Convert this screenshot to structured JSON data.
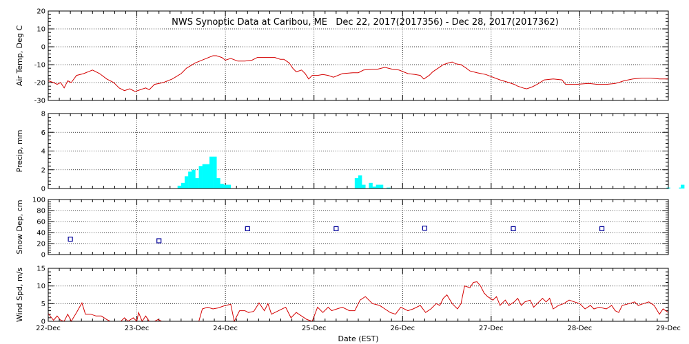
{
  "title": "NWS Synoptic Data at Caribou, ME   Dec 22, 2017(2017356) - Dec 28, 2017(2017362)",
  "xlabel": "Date (EST)",
  "x_ticks": [
    "22-Dec",
    "23-Dec",
    "24-Dec",
    "25-Dec",
    "26-Dec",
    "27-Dec",
    "28-Dec",
    "29-Dec"
  ],
  "colors": {
    "line": "#d40000",
    "precip": "#00ffff",
    "snow": "#000099",
    "grid": "#000000"
  },
  "chart_data": [
    {
      "type": "line",
      "ylabel": "Air Temp, Deg C",
      "ylim": [
        -30,
        20
      ],
      "y_ticks": [
        -30,
        -20,
        -10,
        0,
        10,
        20
      ],
      "x_unit": "days since 22-Dec 00:00 EST",
      "points": [
        [
          0.0,
          -19
        ],
        [
          0.06,
          -20
        ],
        [
          0.1,
          -21
        ],
        [
          0.14,
          -20
        ],
        [
          0.18,
          -23
        ],
        [
          0.22,
          -19
        ],
        [
          0.26,
          -20
        ],
        [
          0.32,
          -16
        ],
        [
          0.4,
          -15
        ],
        [
          0.5,
          -13
        ],
        [
          0.58,
          -15
        ],
        [
          0.66,
          -18
        ],
        [
          0.74,
          -20
        ],
        [
          0.8,
          -23
        ],
        [
          0.86,
          -24.5
        ],
        [
          0.92,
          -23.5
        ],
        [
          0.98,
          -25
        ],
        [
          1.04,
          -24
        ],
        [
          1.1,
          -23
        ],
        [
          1.14,
          -24
        ],
        [
          1.2,
          -21
        ],
        [
          1.3,
          -20
        ],
        [
          1.4,
          -18
        ],
        [
          1.5,
          -15
        ],
        [
          1.56,
          -12
        ],
        [
          1.66,
          -9
        ],
        [
          1.76,
          -7
        ],
        [
          1.86,
          -5
        ],
        [
          1.9,
          -5
        ],
        [
          1.96,
          -6
        ],
        [
          2.0,
          -7.5
        ],
        [
          2.06,
          -6.5
        ],
        [
          2.14,
          -8
        ],
        [
          2.22,
          -8
        ],
        [
          2.3,
          -7.5
        ],
        [
          2.36,
          -6
        ],
        [
          2.46,
          -6
        ],
        [
          2.56,
          -6
        ],
        [
          2.62,
          -7
        ],
        [
          2.66,
          -7
        ],
        [
          2.72,
          -9
        ],
        [
          2.76,
          -12
        ],
        [
          2.8,
          -14
        ],
        [
          2.86,
          -13
        ],
        [
          2.9,
          -15
        ],
        [
          2.94,
          -18
        ],
        [
          2.98,
          -16
        ],
        [
          3.04,
          -16
        ],
        [
          3.1,
          -15.5
        ],
        [
          3.16,
          -16
        ],
        [
          3.22,
          -17
        ],
        [
          3.32,
          -15
        ],
        [
          3.44,
          -14.5
        ],
        [
          3.5,
          -14.5
        ],
        [
          3.56,
          -13
        ],
        [
          3.66,
          -12.5
        ],
        [
          3.72,
          -12.5
        ],
        [
          3.8,
          -11.5
        ],
        [
          3.88,
          -12.5
        ],
        [
          3.96,
          -13
        ],
        [
          4.06,
          -15
        ],
        [
          4.14,
          -15.5
        ],
        [
          4.2,
          -16
        ],
        [
          4.24,
          -18
        ],
        [
          4.3,
          -16
        ],
        [
          4.34,
          -14
        ],
        [
          4.4,
          -12
        ],
        [
          4.46,
          -10
        ],
        [
          4.52,
          -9
        ],
        [
          4.56,
          -8.5
        ],
        [
          4.6,
          -9.5
        ],
        [
          4.66,
          -10
        ],
        [
          4.72,
          -12
        ],
        [
          4.76,
          -13.5
        ],
        [
          4.84,
          -14.5
        ],
        [
          4.94,
          -15.5
        ],
        [
          5.1,
          -18.5
        ],
        [
          5.2,
          -20
        ],
        [
          5.26,
          -21
        ],
        [
          5.3,
          -22
        ],
        [
          5.36,
          -23
        ],
        [
          5.4,
          -23.5
        ],
        [
          5.46,
          -22.5
        ],
        [
          5.52,
          -21
        ],
        [
          5.6,
          -18.5
        ],
        [
          5.7,
          -18
        ],
        [
          5.8,
          -18.5
        ],
        [
          5.84,
          -21
        ],
        [
          5.96,
          -21
        ],
        [
          6.1,
          -20.5
        ],
        [
          6.2,
          -21
        ],
        [
          6.3,
          -21
        ],
        [
          6.4,
          -20.5
        ],
        [
          6.44,
          -20
        ],
        [
          6.5,
          -19
        ],
        [
          6.6,
          -18
        ],
        [
          6.7,
          -17.5
        ],
        [
          6.8,
          -17.5
        ],
        [
          6.9,
          -18
        ],
        [
          7.0,
          -18
        ]
      ]
    },
    {
      "type": "bar",
      "ylabel": "Precip, mm",
      "ylim": [
        0,
        8
      ],
      "y_ticks": [
        0,
        2,
        4,
        6,
        8
      ],
      "bar_width_days": 0.042,
      "points": [
        [
          1.46,
          0.3
        ],
        [
          1.5,
          0.6
        ],
        [
          1.54,
          1.3
        ],
        [
          1.58,
          1.8
        ],
        [
          1.62,
          2.0
        ],
        [
          1.66,
          1.1
        ],
        [
          1.7,
          2.4
        ],
        [
          1.74,
          2.6
        ],
        [
          1.78,
          2.6
        ],
        [
          1.82,
          3.4
        ],
        [
          1.86,
          3.4
        ],
        [
          1.9,
          1.1
        ],
        [
          1.94,
          0.5
        ],
        [
          1.98,
          0.4
        ],
        [
          2.02,
          0.4
        ],
        [
          3.46,
          1.1
        ],
        [
          3.5,
          1.4
        ],
        [
          3.54,
          0.4
        ],
        [
          3.62,
          0.6
        ],
        [
          3.66,
          0.2
        ],
        [
          3.7,
          0.4
        ],
        [
          3.74,
          0.4
        ],
        [
          3.82,
          0.1
        ],
        [
          6.98,
          0.1
        ],
        [
          7.12,
          0.1
        ],
        [
          7.14,
          0.4
        ]
      ]
    },
    {
      "type": "scatter",
      "ylabel": "Snow Dep, cm",
      "ylim": [
        0,
        100
      ],
      "y_ticks": [
        0,
        20,
        40,
        60,
        80,
        100
      ],
      "points": [
        [
          0.25,
          28
        ],
        [
          1.25,
          25
        ],
        [
          2.25,
          47
        ],
        [
          3.25,
          47
        ],
        [
          4.25,
          48
        ],
        [
          5.25,
          47
        ],
        [
          6.25,
          47
        ]
      ]
    },
    {
      "type": "line",
      "ylabel": "Wind Spd, m/s",
      "ylim": [
        0,
        15
      ],
      "y_ticks": [
        0,
        5,
        10,
        15
      ],
      "points": [
        [
          0.0,
          2.2
        ],
        [
          0.06,
          0.3
        ],
        [
          0.1,
          1.5
        ],
        [
          0.14,
          0.3
        ],
        [
          0.18,
          0.0
        ],
        [
          0.22,
          2.0
        ],
        [
          0.26,
          0.0
        ],
        [
          0.32,
          2.5
        ],
        [
          0.38,
          5.2
        ],
        [
          0.42,
          2.0
        ],
        [
          0.48,
          2.0
        ],
        [
          0.54,
          1.5
        ],
        [
          0.6,
          1.5
        ],
        [
          0.66,
          0.5
        ],
        [
          0.7,
          0.0
        ],
        [
          0.76,
          0.0
        ],
        [
          0.82,
          0.0
        ],
        [
          0.86,
          1.0
        ],
        [
          0.9,
          0.0
        ],
        [
          0.96,
          1.0
        ],
        [
          1.0,
          0.0
        ],
        [
          1.02,
          2.5
        ],
        [
          1.06,
          0.0
        ],
        [
          1.1,
          1.5
        ],
        [
          1.14,
          0.0
        ],
        [
          1.2,
          0.0
        ],
        [
          1.24,
          0.5
        ],
        [
          1.28,
          0.0
        ],
        [
          1.3,
          0.0
        ],
        [
          1.7,
          0.0
        ],
        [
          1.74,
          3.5
        ],
        [
          1.8,
          4.0
        ],
        [
          1.86,
          3.5
        ],
        [
          1.92,
          3.8
        ],
        [
          2.0,
          4.5
        ],
        [
          2.06,
          4.8
        ],
        [
          2.1,
          0.0
        ],
        [
          2.16,
          3.0
        ],
        [
          2.22,
          3.0
        ],
        [
          2.26,
          2.5
        ],
        [
          2.32,
          2.8
        ],
        [
          2.38,
          5.2
        ],
        [
          2.44,
          3.0
        ],
        [
          2.48,
          5.0
        ],
        [
          2.52,
          2.0
        ],
        [
          2.6,
          3.0
        ],
        [
          2.68,
          4.0
        ],
        [
          2.74,
          1.0
        ],
        [
          2.8,
          2.5
        ],
        [
          2.86,
          1.5
        ],
        [
          2.92,
          0.5
        ],
        [
          2.98,
          0.0
        ],
        [
          3.04,
          4.0
        ],
        [
          3.1,
          2.5
        ],
        [
          3.16,
          4.0
        ],
        [
          3.2,
          3.0
        ],
        [
          3.26,
          3.5
        ],
        [
          3.32,
          4.0
        ],
        [
          3.4,
          3.0
        ],
        [
          3.46,
          3.0
        ],
        [
          3.52,
          6.0
        ],
        [
          3.58,
          7.0
        ],
        [
          3.66,
          5.0
        ],
        [
          3.74,
          4.5
        ],
        [
          3.8,
          3.5
        ],
        [
          3.86,
          2.5
        ],
        [
          3.92,
          2.0
        ],
        [
          3.98,
          4.0
        ],
        [
          4.06,
          3.0
        ],
        [
          4.12,
          3.5
        ],
        [
          4.2,
          4.5
        ],
        [
          4.26,
          2.5
        ],
        [
          4.32,
          3.5
        ],
        [
          4.38,
          5.0
        ],
        [
          4.42,
          4.5
        ],
        [
          4.46,
          6.5
        ],
        [
          4.5,
          7.5
        ],
        [
          4.56,
          5.0
        ],
        [
          4.62,
          3.5
        ],
        [
          4.66,
          5.0
        ],
        [
          4.7,
          10.0
        ],
        [
          4.76,
          9.5
        ],
        [
          4.8,
          11.0
        ],
        [
          4.84,
          11.2
        ],
        [
          4.88,
          10.0
        ],
        [
          4.92,
          8.0
        ],
        [
          4.96,
          7.0
        ],
        [
          5.02,
          6.0
        ],
        [
          5.06,
          7.0
        ],
        [
          5.1,
          4.5
        ],
        [
          5.16,
          6.0
        ],
        [
          5.2,
          4.5
        ],
        [
          5.26,
          5.5
        ],
        [
          5.3,
          6.5
        ],
        [
          5.34,
          4.5
        ],
        [
          5.38,
          5.5
        ],
        [
          5.44,
          6.0
        ],
        [
          5.48,
          4.0
        ],
        [
          5.52,
          5.0
        ],
        [
          5.58,
          6.5
        ],
        [
          5.62,
          5.5
        ],
        [
          5.66,
          6.5
        ],
        [
          5.7,
          3.5
        ],
        [
          5.76,
          4.5
        ],
        [
          5.82,
          5.0
        ],
        [
          5.88,
          6.0
        ],
        [
          5.94,
          5.5
        ],
        [
          6.0,
          5.0
        ],
        [
          6.06,
          3.5
        ],
        [
          6.12,
          4.5
        ],
        [
          6.16,
          3.5
        ],
        [
          6.22,
          4.0
        ],
        [
          6.3,
          3.5
        ],
        [
          6.36,
          4.5
        ],
        [
          6.4,
          3.0
        ],
        [
          6.44,
          2.5
        ],
        [
          6.48,
          4.5
        ],
        [
          6.56,
          5.0
        ],
        [
          6.62,
          5.5
        ],
        [
          6.66,
          4.5
        ],
        [
          6.72,
          5.0
        ],
        [
          6.78,
          5.5
        ],
        [
          6.84,
          4.5
        ],
        [
          6.9,
          2.0
        ],
        [
          6.94,
          3.5
        ],
        [
          7.0,
          2.5
        ]
      ]
    }
  ]
}
